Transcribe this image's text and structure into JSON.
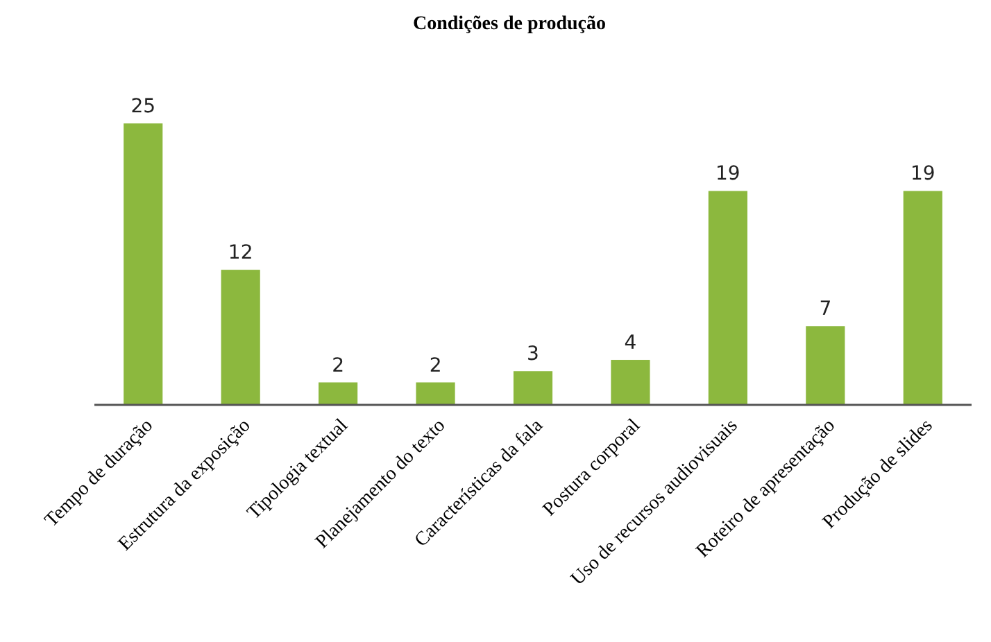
{
  "chart_data": {
    "type": "bar",
    "title": "Condições de produção",
    "categories": [
      "Tempo de duração",
      "Estrutura da exposição",
      "Tipologia textual",
      "Planejamento do texto",
      "Características da fala",
      "Postura corporal",
      "Uso de recursos audiovisuais",
      "Roteiro de apresentação",
      "Produção de slides"
    ],
    "values": [
      25,
      12,
      2,
      2,
      3,
      4,
      19,
      7,
      19
    ],
    "color": "#8cb83e",
    "data_labels": true
  }
}
